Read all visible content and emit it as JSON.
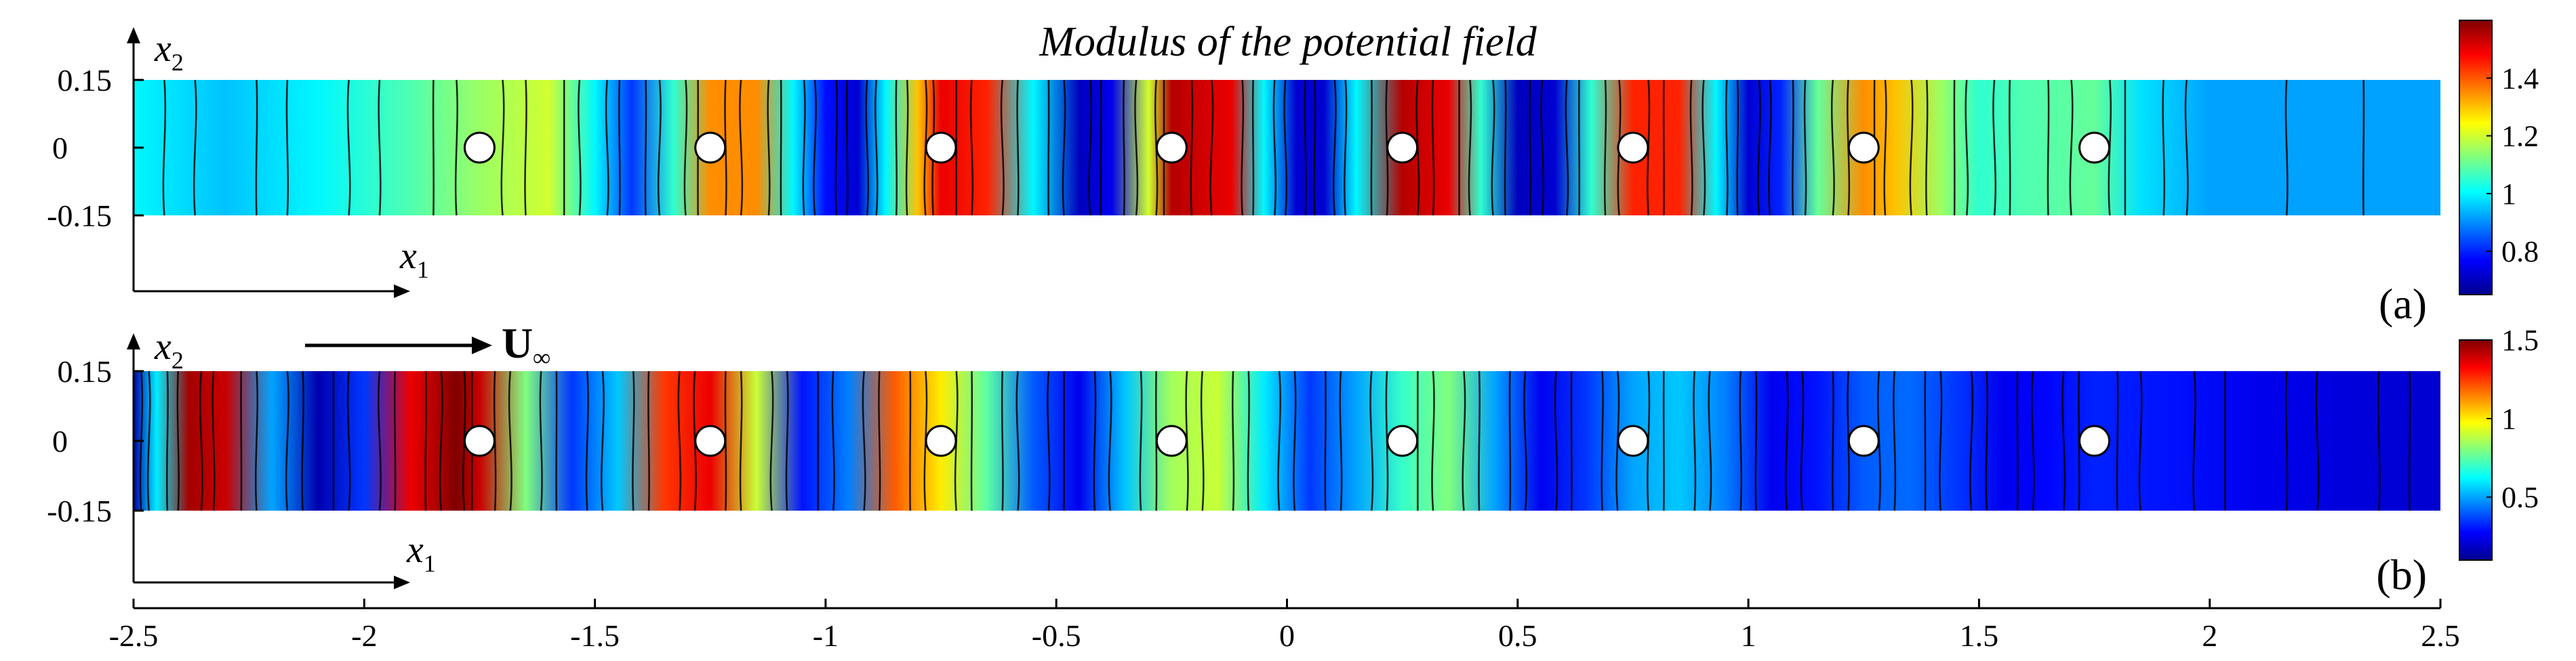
{
  "figure": {
    "title": "Modulus of the potential field"
  },
  "chart_data": [
    {
      "type": "heatmap",
      "panel_label": "(a)",
      "xlim": [
        -2.5,
        2.5
      ],
      "ylim": [
        -0.15,
        0.15
      ],
      "y_ticks": [
        "0.15",
        "0",
        "-0.15"
      ],
      "y_tick_values": [
        0.15,
        0,
        -0.15
      ],
      "axis_x_label": "x",
      "axis_x_sub": "1",
      "axis_y_label": "x",
      "axis_y_sub": "2",
      "cylinders_x": [
        -1.75,
        -1.25,
        -0.75,
        -0.25,
        0.25,
        0.75,
        1.25,
        1.75
      ],
      "colorbar": {
        "range": [
          0.65,
          1.6
        ],
        "ticks": [
          "1.4",
          "1.2",
          "1",
          "0.8"
        ],
        "tick_values": [
          1.4,
          1.2,
          1.0,
          0.8
        ]
      },
      "field_profile": {
        "x": [
          -2.5,
          -2.3,
          -2.1,
          -1.9,
          -1.75,
          -1.6,
          -1.5,
          -1.42,
          -1.33,
          -1.25,
          -1.15,
          -1.07,
          -1.0,
          -0.93,
          -0.87,
          -0.8,
          -0.75,
          -0.65,
          -0.55,
          -0.45,
          -0.38,
          -0.3,
          -0.25,
          -0.12,
          -0.05,
          0.02,
          0.08,
          0.15,
          0.25,
          0.35,
          0.42,
          0.5,
          0.58,
          0.66,
          0.75,
          0.85,
          0.93,
          1.0,
          1.07,
          1.15,
          1.25,
          1.32,
          1.42,
          1.5,
          1.6,
          1.75,
          1.85,
          2.0,
          2.5
        ],
        "value": [
          1.0,
          0.95,
          1.0,
          1.08,
          1.15,
          1.2,
          1.0,
          0.82,
          1.05,
          1.35,
          1.35,
          1.0,
          0.78,
          0.72,
          1.0,
          1.3,
          1.5,
          1.45,
          1.0,
          0.7,
          0.75,
          1.2,
          1.55,
          1.5,
          1.0,
          0.72,
          0.72,
          1.0,
          1.55,
          1.5,
          1.05,
          0.7,
          0.72,
          1.05,
          1.45,
          1.45,
          1.0,
          0.72,
          0.8,
          1.1,
          1.35,
          1.3,
          1.15,
          1.05,
          1.08,
          1.1,
          0.98,
          0.92,
          0.92
        ]
      }
    },
    {
      "type": "heatmap",
      "panel_label": "(b)",
      "xlim": [
        -2.5,
        2.5
      ],
      "ylim": [
        -0.15,
        0.15
      ],
      "x_ticks": [
        "-2.5",
        "-2",
        "-1.5",
        "-1",
        "-0.5",
        "0",
        "0.5",
        "1",
        "1.5",
        "2",
        "2.5"
      ],
      "x_tick_values": [
        -2.5,
        -2,
        -1.5,
        -1,
        -0.5,
        0,
        0.5,
        1,
        1.5,
        2,
        2.5
      ],
      "y_ticks": [
        "0.15",
        "0",
        "-0.15"
      ],
      "y_tick_values": [
        0.15,
        0,
        -0.15
      ],
      "axis_x_label": "x",
      "axis_x_sub": "1",
      "axis_y_label": "x",
      "axis_y_sub": "2",
      "flow_label": "U",
      "flow_sub": "∞",
      "cylinders_x": [
        -1.75,
        -1.25,
        -0.75,
        -0.25,
        0.25,
        0.75,
        1.25,
        1.75
      ],
      "colorbar": {
        "range": [
          0.1,
          1.5
        ],
        "ticks": [
          "1.5",
          "1",
          "0.5"
        ],
        "tick_values": [
          1.5,
          1.0,
          0.5
        ]
      },
      "field_profile": {
        "x": [
          -2.5,
          -2.45,
          -2.38,
          -2.3,
          -2.2,
          -2.1,
          -2.0,
          -1.9,
          -1.8,
          -1.75,
          -1.65,
          -1.55,
          -1.45,
          -1.35,
          -1.25,
          -1.15,
          -1.05,
          -0.95,
          -0.85,
          -0.75,
          -0.65,
          -0.55,
          -0.45,
          -0.35,
          -0.25,
          -0.15,
          -0.05,
          0.05,
          0.15,
          0.25,
          0.35,
          0.45,
          0.55,
          0.65,
          0.75,
          0.85,
          0.95,
          1.05,
          1.15,
          1.25,
          1.35,
          1.45,
          1.55,
          1.65,
          1.75,
          1.9,
          2.1,
          2.3,
          2.5
        ],
        "value": [
          0.15,
          0.6,
          1.45,
          1.4,
          0.5,
          0.15,
          0.35,
          1.35,
          1.5,
          1.4,
          0.8,
          0.35,
          0.55,
          1.25,
          1.35,
          0.9,
          0.3,
          0.45,
          1.2,
          1.0,
          0.75,
          0.4,
          0.25,
          0.55,
          0.85,
          0.9,
          0.6,
          0.35,
          0.5,
          0.7,
          0.8,
          0.5,
          0.25,
          0.35,
          0.5,
          0.55,
          0.45,
          0.25,
          0.3,
          0.4,
          0.42,
          0.35,
          0.25,
          0.28,
          0.32,
          0.3,
          0.25,
          0.22,
          0.2
        ]
      }
    }
  ]
}
